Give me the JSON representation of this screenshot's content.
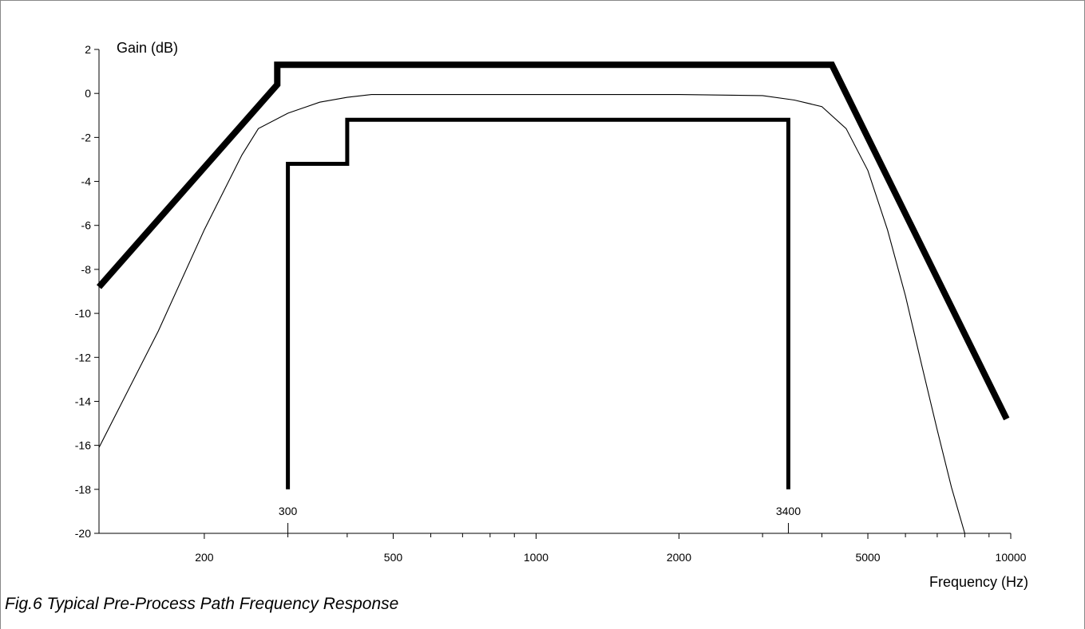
{
  "caption": "Fig.6  Typical Pre-Process Path Frequency Response",
  "chart_data": {
    "type": "line",
    "title": "",
    "xlabel": "Frequency (Hz)",
    "ylabel": "Gain (dB)",
    "x_scale": "log",
    "xlim": [
      120,
      10000
    ],
    "ylim": [
      -20,
      2
    ],
    "grid": false,
    "x_tick_labels": [
      {
        "value": 200,
        "label": "200"
      },
      {
        "value": 500,
        "label": "500"
      },
      {
        "value": 1000,
        "label": "1000"
      },
      {
        "value": 2000,
        "label": "2000"
      },
      {
        "value": 5000,
        "label": "5000"
      },
      {
        "value": 10000,
        "label": "10000"
      }
    ],
    "x_minor_ticks": [
      300,
      400,
      600,
      700,
      800,
      900,
      3000,
      4000,
      6000,
      7000,
      8000,
      9000
    ],
    "y_ticks": [
      2,
      0,
      -2,
      -4,
      -6,
      -8,
      -10,
      -12,
      -14,
      -16,
      -18,
      -20
    ],
    "annotations": [
      {
        "x": 300,
        "label": "300"
      },
      {
        "x": 3400,
        "label": "3400"
      }
    ],
    "series": [
      {
        "role": "upper-limit",
        "color": "#000000",
        "points": [
          [
            120,
            -8.8
          ],
          [
            285,
            0.4
          ],
          [
            285,
            1.3
          ],
          [
            4200,
            1.3
          ],
          [
            9800,
            -14.8
          ]
        ]
      },
      {
        "role": "lower-limit",
        "color": "#000000",
        "points": [
          [
            300,
            -18
          ],
          [
            300,
            -3.2
          ],
          [
            400,
            -3.2
          ],
          [
            400,
            -1.2
          ],
          [
            3400,
            -1.2
          ],
          [
            3400,
            -18
          ]
        ]
      },
      {
        "role": "typical-response",
        "color": "#000000",
        "points": [
          [
            120,
            -16.1
          ],
          [
            160,
            -10.8
          ],
          [
            200,
            -6.2
          ],
          [
            240,
            -2.8
          ],
          [
            260,
            -1.6
          ],
          [
            300,
            -0.9
          ],
          [
            350,
            -0.4
          ],
          [
            400,
            -0.18
          ],
          [
            450,
            -0.05
          ],
          [
            1000,
            -0.05
          ],
          [
            2000,
            -0.05
          ],
          [
            3000,
            -0.1
          ],
          [
            3500,
            -0.3
          ],
          [
            4000,
            -0.6
          ],
          [
            4500,
            -1.6
          ],
          [
            5000,
            -3.5
          ],
          [
            5500,
            -6.2
          ],
          [
            6000,
            -9.2
          ],
          [
            6500,
            -12.4
          ],
          [
            7000,
            -15.3
          ],
          [
            7500,
            -17.9
          ],
          [
            8000,
            -20
          ]
        ]
      }
    ]
  }
}
